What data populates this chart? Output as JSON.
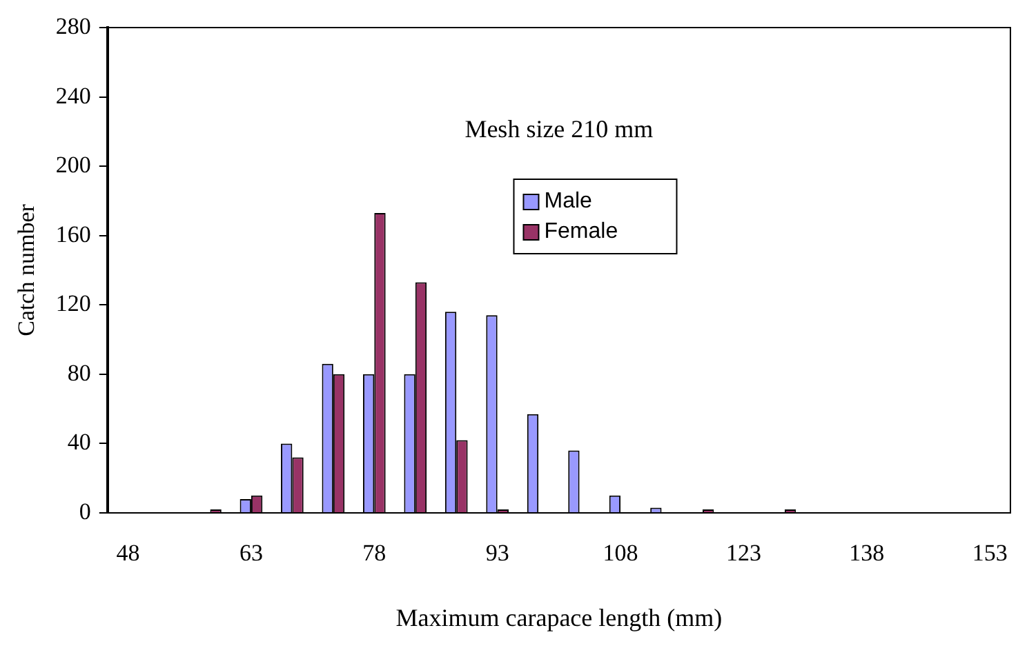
{
  "chart_data": {
    "type": "bar",
    "xlabel": "Maximum carapace length (mm)",
    "ylabel": "Catch number",
    "categories": [
      "48",
      null,
      null,
      "63",
      null,
      null,
      "78",
      null,
      null,
      "93",
      null,
      null,
      "108",
      null,
      null,
      "123",
      null,
      null,
      "138",
      null,
      null,
      "153"
    ],
    "series": [
      {
        "name": "Male",
        "color": "#9999ff",
        "values": [
          0,
          0,
          0,
          8,
          40,
          86,
          80,
          80,
          116,
          114,
          57,
          36,
          10,
          3,
          0,
          0,
          0,
          0,
          0,
          0,
          0,
          0
        ]
      },
      {
        "name": "Female",
        "color": "#993366",
        "values": [
          0,
          0,
          2,
          10,
          32,
          80,
          173,
          133,
          42,
          2,
          0,
          0,
          0,
          0,
          2,
          0,
          2,
          0,
          0,
          0,
          0,
          0
        ]
      }
    ],
    "ylim": [
      0,
      280
    ],
    "yticks": [
      0,
      40,
      80,
      120,
      160,
      200,
      240,
      280
    ],
    "grid": false,
    "legend": "top",
    "annotations": [
      "Mesh size 210 mm"
    ]
  }
}
